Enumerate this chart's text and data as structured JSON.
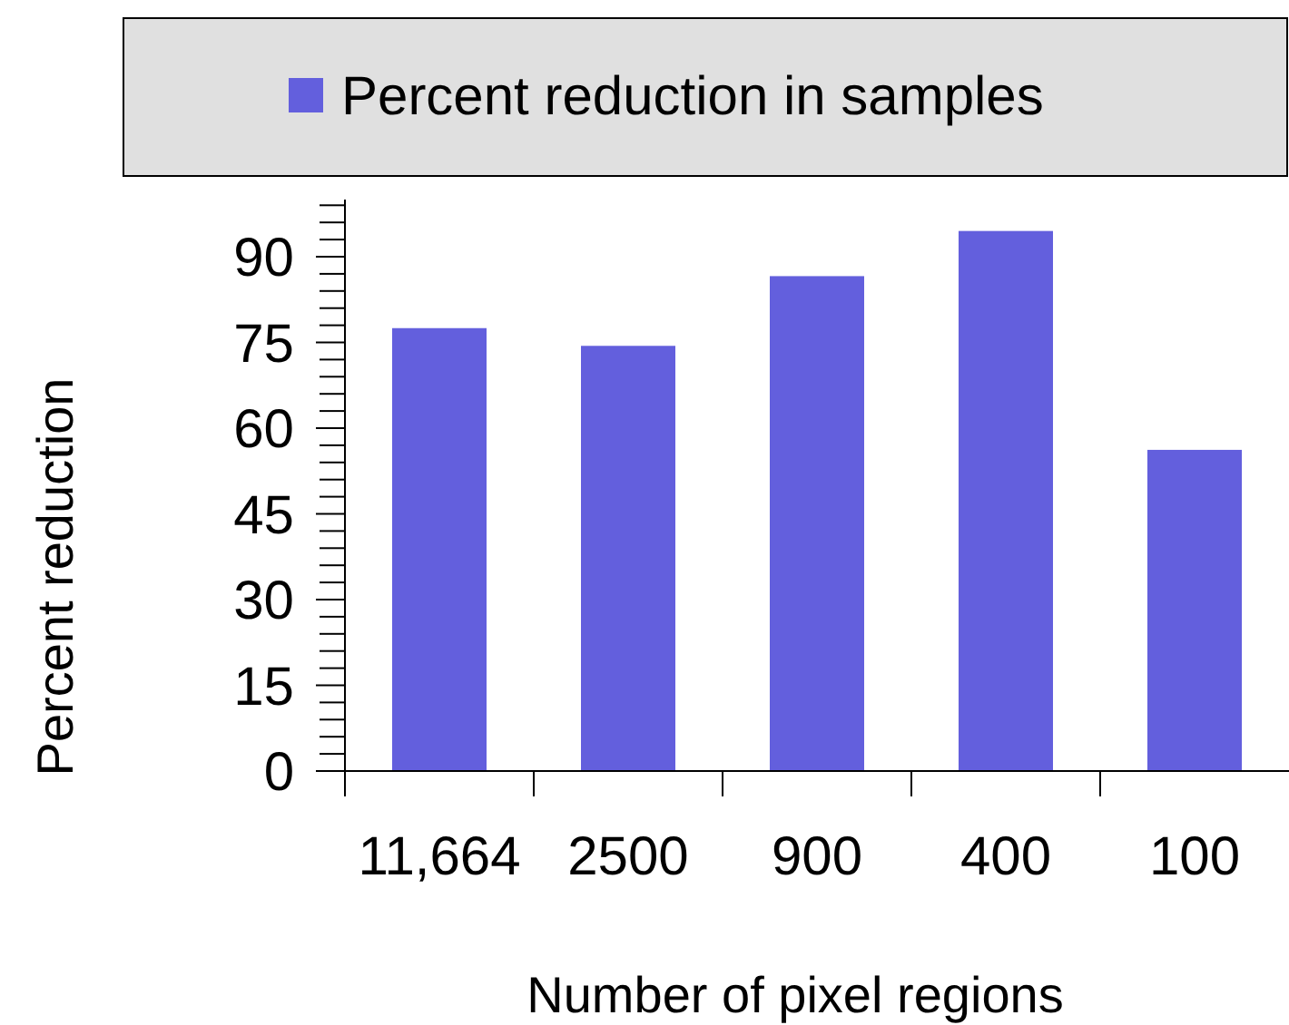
{
  "chart_data": {
    "type": "bar",
    "xlabel": "Number of pixel regions",
    "ylabel": "Percent reduction",
    "categories": [
      "11,664",
      "2500",
      "900",
      "400",
      "100"
    ],
    "series": [
      {
        "name": "Percent reduction in samples",
        "color": "#635fdd",
        "values": [
          77.5,
          74.4,
          86.6,
          94.5,
          56.2
        ]
      }
    ],
    "ylim": [
      0,
      100
    ],
    "yticks": [
      0,
      {
        "value": 3,
        "label": null
      },
      {
        "value": 6,
        "label": null
      },
      {
        "value": 9,
        "label": null
      },
      {
        "value": 12,
        "label": null
      },
      15,
      {
        "value": 18,
        "label": null
      },
      {
        "value": 21,
        "label": null
      },
      {
        "value": 24,
        "label": null
      },
      {
        "value": 27,
        "label": null
      },
      30,
      {
        "value": 33,
        "label": null
      },
      {
        "value": 36,
        "label": null
      },
      {
        "value": 39,
        "label": null
      },
      {
        "value": 42,
        "label": null
      },
      45,
      {
        "value": 48,
        "label": null
      },
      {
        "value": 51,
        "label": null
      },
      {
        "value": 54,
        "label": null
      },
      {
        "value": 57,
        "label": null
      },
      60,
      {
        "value": 63,
        "label": null
      },
      {
        "value": 66,
        "label": null
      },
      {
        "value": 69,
        "label": null
      },
      {
        "value": 72,
        "label": null
      },
      75,
      {
        "value": 78,
        "label": null
      },
      {
        "value": 81,
        "label": null
      },
      {
        "value": 84,
        "label": null
      },
      {
        "value": 87,
        "label": null
      },
      90,
      {
        "value": 93,
        "label": null
      },
      {
        "value": 96,
        "label": null
      },
      {
        "value": 99,
        "label": null
      }
    ],
    "legend": "top",
    "grid": false
  }
}
